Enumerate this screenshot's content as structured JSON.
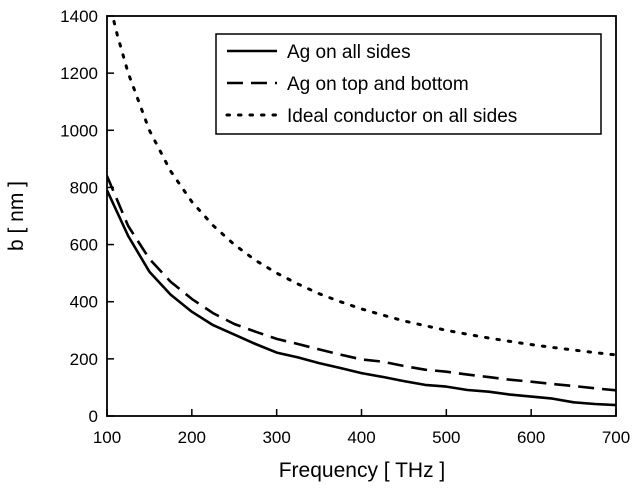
{
  "chart_data": {
    "type": "line",
    "title": "",
    "xlabel": "Frequency [ THz ]",
    "ylabel": "b [ nm ]",
    "xlim": [
      100,
      700
    ],
    "ylim": [
      0,
      1400
    ],
    "xticks": [
      100,
      200,
      300,
      400,
      500,
      600,
      700
    ],
    "yticks": [
      0,
      200,
      400,
      600,
      800,
      1000,
      1200,
      1400
    ],
    "grid": false,
    "legend_position": "top-right",
    "series": [
      {
        "name": "Ag on all sides",
        "style": "solid",
        "color": "#000000",
        "x": [
          100,
          125,
          150,
          175,
          200,
          225,
          250,
          275,
          300,
          325,
          350,
          375,
          400,
          425,
          450,
          475,
          500,
          525,
          550,
          575,
          600,
          625,
          650,
          675,
          700
        ],
        "y": [
          790,
          630,
          505,
          425,
          365,
          318,
          285,
          252,
          222,
          205,
          185,
          168,
          150,
          137,
          122,
          109,
          103,
          91,
          85,
          75,
          68,
          61,
          48,
          42,
          38
        ]
      },
      {
        "name": "Ag on top and bottom",
        "style": "dashed",
        "color": "#000000",
        "x": [
          100,
          125,
          150,
          175,
          200,
          225,
          250,
          275,
          300,
          325,
          350,
          375,
          400,
          425,
          450,
          475,
          500,
          525,
          550,
          575,
          600,
          625,
          650,
          675,
          700
        ],
        "y": [
          840,
          665,
          550,
          470,
          410,
          360,
          322,
          295,
          270,
          252,
          233,
          215,
          198,
          190,
          175,
          162,
          155,
          145,
          136,
          127,
          120,
          112,
          105,
          97,
          90
        ]
      },
      {
        "name": "Ideal conductor on all sides",
        "style": "dotted",
        "color": "#000000",
        "x": [
          105,
          112,
          125,
          150,
          175,
          200,
          225,
          250,
          275,
          300,
          325,
          350,
          375,
          400,
          425,
          450,
          475,
          500,
          525,
          550,
          575,
          600,
          625,
          650,
          675,
          700
        ],
        "y": [
          1420,
          1335,
          1200,
          1000,
          857,
          750,
          667,
          600,
          545,
          500,
          462,
          428,
          400,
          375,
          353,
          333,
          316,
          300,
          286,
          273,
          261,
          250,
          240,
          231,
          222,
          214
        ]
      }
    ]
  }
}
